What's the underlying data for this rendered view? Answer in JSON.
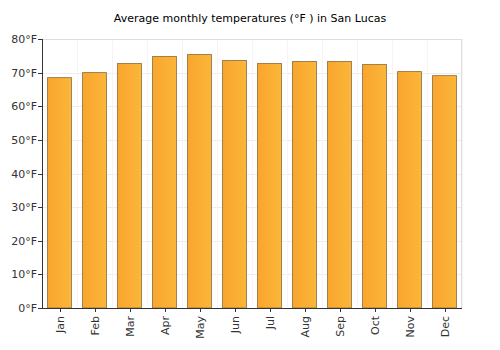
{
  "chart_data": {
    "type": "bar",
    "title": "Average monthly temperatures (°F ) in San Lucas",
    "categories": [
      "Jan",
      "Feb",
      "Mar",
      "Apr",
      "May",
      "Jun",
      "Jul",
      "Aug",
      "Sep",
      "Oct",
      "Nov",
      "Dec"
    ],
    "values": [
      68.5,
      70.0,
      72.7,
      74.8,
      75.4,
      73.6,
      72.7,
      73.3,
      73.3,
      72.4,
      70.3,
      69.1
    ],
    "color": "#f9a52e",
    "ylim": [
      0,
      80
    ],
    "yticks": [
      {
        "value": 0,
        "label": "0°F"
      },
      {
        "value": 10,
        "label": "10°F"
      },
      {
        "value": 20,
        "label": "20°F"
      },
      {
        "value": 30,
        "label": "30°F"
      },
      {
        "value": 40,
        "label": "40°F"
      },
      {
        "value": 50,
        "label": "50°F"
      },
      {
        "value": 60,
        "label": "60°F"
      },
      {
        "value": 70,
        "label": "70°F"
      },
      {
        "value": 80,
        "label": "80°F"
      }
    ],
    "grid": true
  }
}
